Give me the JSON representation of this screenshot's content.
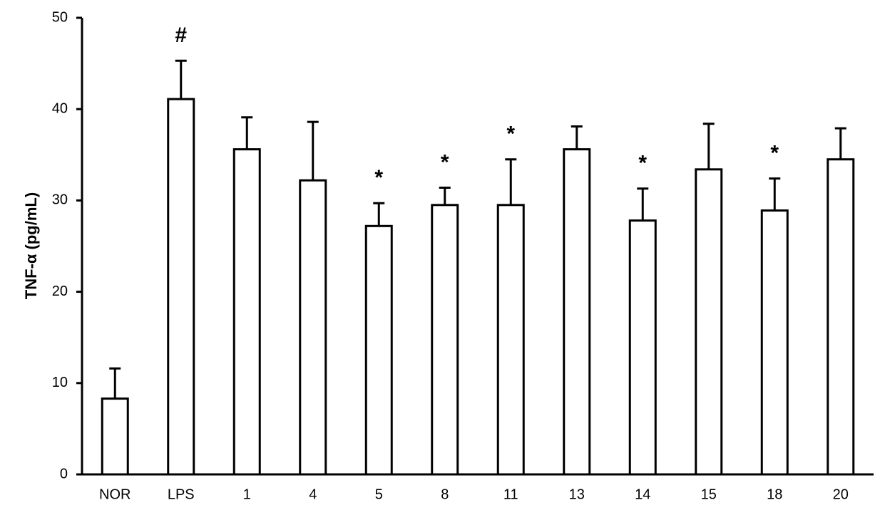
{
  "chart_data": {
    "type": "bar",
    "y_label": "TNF-α (pg/mL)",
    "categories": [
      "NOR",
      "LPS",
      "1",
      "4",
      "5",
      "8",
      "11",
      "13",
      "14",
      "15",
      "18",
      "20"
    ],
    "values": [
      8.3,
      41.1,
      35.6,
      32.2,
      27.2,
      29.5,
      29.5,
      35.6,
      27.8,
      33.4,
      28.9,
      34.5
    ],
    "errors": [
      3.3,
      4.2,
      3.5,
      6.4,
      2.5,
      1.9,
      5.0,
      2.5,
      3.5,
      5.0,
      3.5,
      3.4
    ],
    "annotations": [
      null,
      "#",
      null,
      null,
      "*",
      "*",
      "*",
      null,
      "*",
      null,
      "*",
      null
    ],
    "color": "#ffffff",
    "ylim": [
      0,
      50
    ],
    "yticks": [
      0,
      10,
      20,
      30,
      40,
      50
    ]
  }
}
